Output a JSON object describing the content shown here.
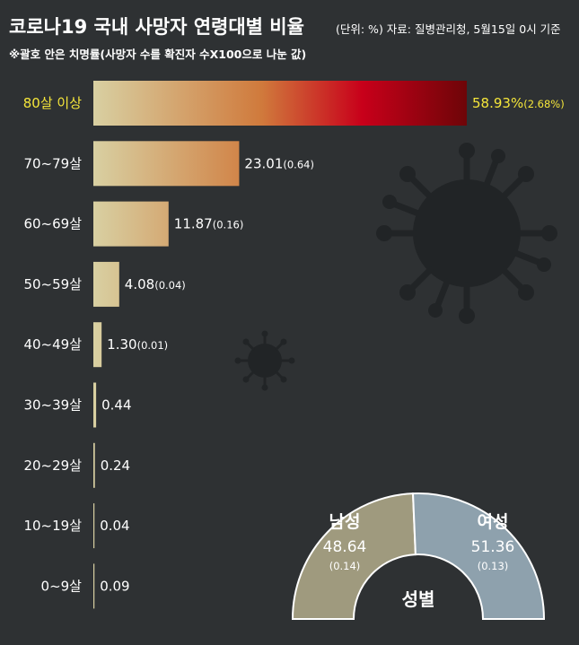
{
  "header": {
    "title": "코로나19 국내 사망자 연령대별 비율",
    "source": "(단위: %) 자료: 질병관리청, 5월15일 0시 기준",
    "note": "※괄호 안은 치명률(사망자 수를 확진자 수X100으로 나눈 값)"
  },
  "chart_data": [
    {
      "type": "bar",
      "orientation": "horizontal",
      "categories": [
        "80살 이상",
        "70~79살",
        "60~69살",
        "50~59살",
        "40~49살",
        "30~39살",
        "20~29살",
        "10~19살",
        "0~9살"
      ],
      "values": [
        58.93,
        23.01,
        11.87,
        4.08,
        1.3,
        0.44,
        0.24,
        0.04,
        0.09
      ],
      "value_labels": [
        "58.93%",
        "23.01",
        "11.87",
        "4.08",
        "1.30",
        "0.44",
        "0.24",
        "0.04",
        "0.09"
      ],
      "fatality_rate_labels": [
        "(2.68%)",
        "(0.64)",
        "(0.16)",
        "(0.04)",
        "(0.01)",
        "",
        "",
        "",
        ""
      ],
      "fatality_rates": [
        2.68,
        0.64,
        0.16,
        0.04,
        0.01,
        null,
        null,
        null,
        null
      ],
      "highlight_index": 0,
      "colors": {
        "bar_start": "#d8d0a2",
        "bar_mid": "#d07a3c",
        "bar_hot": "#c8001a",
        "bar_end": "#6e0508",
        "highlight_text": "#f5e63a",
        "text": "#ffffff",
        "axis": "#bbbbbb"
      }
    },
    {
      "type": "pie",
      "style": "half-donut",
      "title": "성별",
      "categories": [
        "남성",
        "여성"
      ],
      "values": [
        48.64,
        51.36
      ],
      "value_labels": [
        "48.64",
        "51.36"
      ],
      "fatality_rates": [
        0.14,
        0.13
      ],
      "fatality_rate_labels": [
        "(0.14)",
        "(0.13)"
      ],
      "colors": [
        "#9f9a7e",
        "#8ea1ad"
      ]
    }
  ]
}
